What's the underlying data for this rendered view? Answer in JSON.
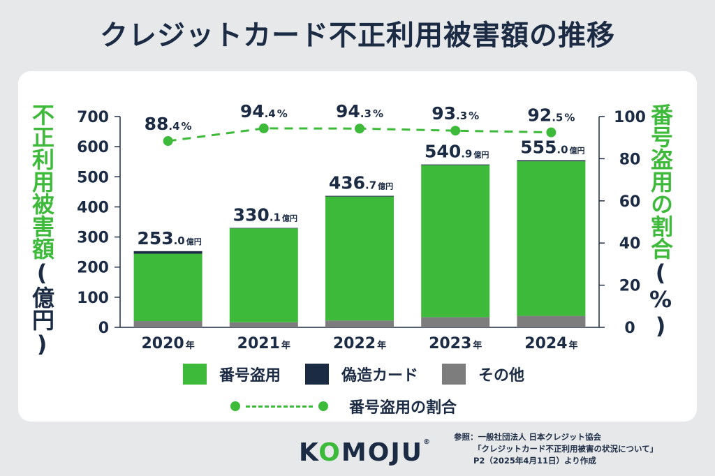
{
  "title": "クレジットカード不正利用被害額の推移",
  "left_axis_label": {
    "main": "不正利用被害額",
    "unit": "(億円)"
  },
  "right_axis_label": {
    "main": "番号盗用の割合",
    "unit": "(%)"
  },
  "colors": {
    "theft": "#3dba3a",
    "counterfeit": "#1c2b44",
    "other": "#7d7d7d",
    "text": "#1c2b44"
  },
  "chart_data": {
    "type": "bar",
    "categories": [
      "2020",
      "2021",
      "2022",
      "2023",
      "2024"
    ],
    "category_suffix": "年",
    "series": [
      {
        "name": "番号盗用",
        "values": [
          223.6,
          311.7,
          411.7,
          504.7,
          513.4
        ]
      },
      {
        "name": "偽造カード",
        "values": [
          8.6,
          1.5,
          2.4,
          2.3,
          3.6
        ]
      },
      {
        "name": "その他",
        "values": [
          20.8,
          16.9,
          22.6,
          33.9,
          38.0
        ]
      }
    ],
    "totals": [
      253.0,
      330.1,
      436.7,
      540.9,
      555.0
    ],
    "total_labels": [
      {
        "int": "253",
        "dec": ".0",
        "unit": "億円"
      },
      {
        "int": "330",
        "dec": ".1",
        "unit": "億円"
      },
      {
        "int": "436",
        "dec": ".7",
        "unit": "億円"
      },
      {
        "int": "540",
        "dec": ".9",
        "unit": "億円"
      },
      {
        "int": "555",
        "dec": ".0",
        "unit": "億円"
      }
    ],
    "line_series": {
      "name": "番号盗用の割合",
      "values": [
        88.4,
        94.4,
        94.3,
        93.3,
        92.5
      ],
      "labels": [
        {
          "int": "88",
          "dec": ".4",
          "unit": "%"
        },
        {
          "int": "94",
          "dec": ".4",
          "unit": "%"
        },
        {
          "int": "94",
          "dec": ".3",
          "unit": "%"
        },
        {
          "int": "93",
          "dec": ".3",
          "unit": "%"
        },
        {
          "int": "92",
          "dec": ".5",
          "unit": "%"
        }
      ]
    },
    "left_axis": {
      "ylim": [
        0,
        700
      ],
      "ticks": [
        0,
        100,
        200,
        300,
        400,
        500,
        600,
        700
      ]
    },
    "right_axis": {
      "ylim": [
        0,
        100
      ],
      "ticks": [
        0,
        20,
        40,
        60,
        80,
        100
      ]
    },
    "grid": false
  },
  "legend": {
    "items": [
      "番号盗用",
      "偽造カード",
      "その他"
    ],
    "line_label": "番号盗用の割合"
  },
  "logo": {
    "pre": "K",
    "o": "O",
    "post": "MOJU",
    "reg": "®"
  },
  "source": {
    "line1": "参照：一般社団法人 日本クレジット協会",
    "line2": "「クレジットカード不正利用被害の状況について」",
    "line3": "P2（2025年4月11日）より作成"
  }
}
